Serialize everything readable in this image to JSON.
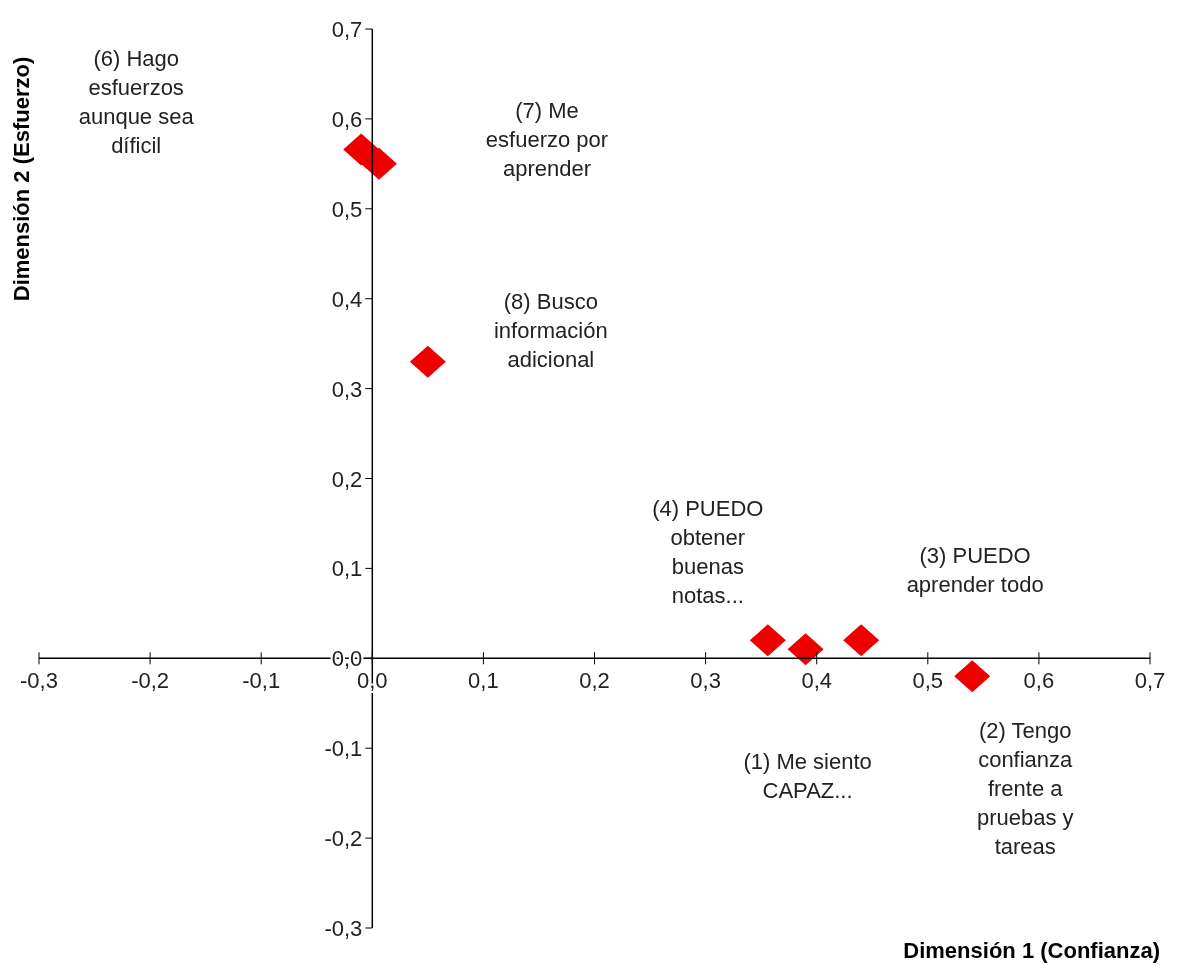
{
  "chart_data": {
    "type": "scatter",
    "xlabel": "Dimensión 1  (Confianza)",
    "ylabel": "Dimensión 2  (Esfuerzo)",
    "series": [
      {
        "color": "#ee0000",
        "x": [
          0.39,
          0.54,
          0.44,
          0.356,
          -0.01,
          0.006,
          0.05
        ],
        "values": [
          0.01,
          -0.02,
          0.02,
          0.02,
          0.566,
          0.55,
          0.33
        ]
      }
    ],
    "marker": "diamond",
    "grid": false,
    "legend": false,
    "xlim": [
      -0.3,
      0.7
    ],
    "ylim": [
      -0.3,
      0.7
    ],
    "xticks": [
      {
        "value": -0.3,
        "label": "-0,3"
      },
      {
        "value": -0.2,
        "label": "-0,2"
      },
      {
        "value": -0.1,
        "label": "-0,1"
      },
      {
        "value": 0,
        "label": "0,0"
      },
      {
        "value": 0.1,
        "label": "0,1"
      },
      {
        "value": 0.2,
        "label": "0,2"
      },
      {
        "value": 0.3,
        "label": "0,3"
      },
      {
        "value": 0.4,
        "label": "0,4"
      },
      {
        "value": 0.5,
        "label": "0,5"
      },
      {
        "value": 0.6,
        "label": "0,6"
      },
      {
        "value": 0.7,
        "label": "0,7"
      }
    ],
    "yticks": [
      {
        "value": -0.3,
        "label": "-0,3"
      },
      {
        "value": -0.2,
        "label": "-0,2"
      },
      {
        "value": -0.1,
        "label": "-0,1"
      },
      {
        "value": 0,
        "label": "0,0"
      },
      {
        "value": 0.1,
        "label": "0,1"
      },
      {
        "value": 0.2,
        "label": "0,2"
      },
      {
        "value": 0.3,
        "label": "0,3"
      },
      {
        "value": 0.4,
        "label": "0,4"
      },
      {
        "value": 0.5,
        "label": "0,5"
      },
      {
        "value": 0.6,
        "label": "0,6"
      },
      {
        "value": 0.7,
        "label": "0,7"
      }
    ],
    "annotations": [
      "(1) Me siento\nCAPAZ...",
      {
        "text": "(2) Tengo\nconfianza\nfrente a\npruebas y\ntareas",
        "x": 0.54,
        "y": -0.02
      },
      {
        "text": "(3) PUEDO\naprender todo",
        "x": 0.44,
        "y": 0.02
      },
      {
        "text": "(4) PUEDO\nobtener\nbuenas\nnotas...",
        "x": 0.356,
        "y": 0.02
      },
      "(6) Hago\nesfuerzos\naunque sea\ndíficil",
      "(7) Me\nesfuerzo por\naprender",
      "(8) Busco\ninformación\nadicional"
    ]
  }
}
